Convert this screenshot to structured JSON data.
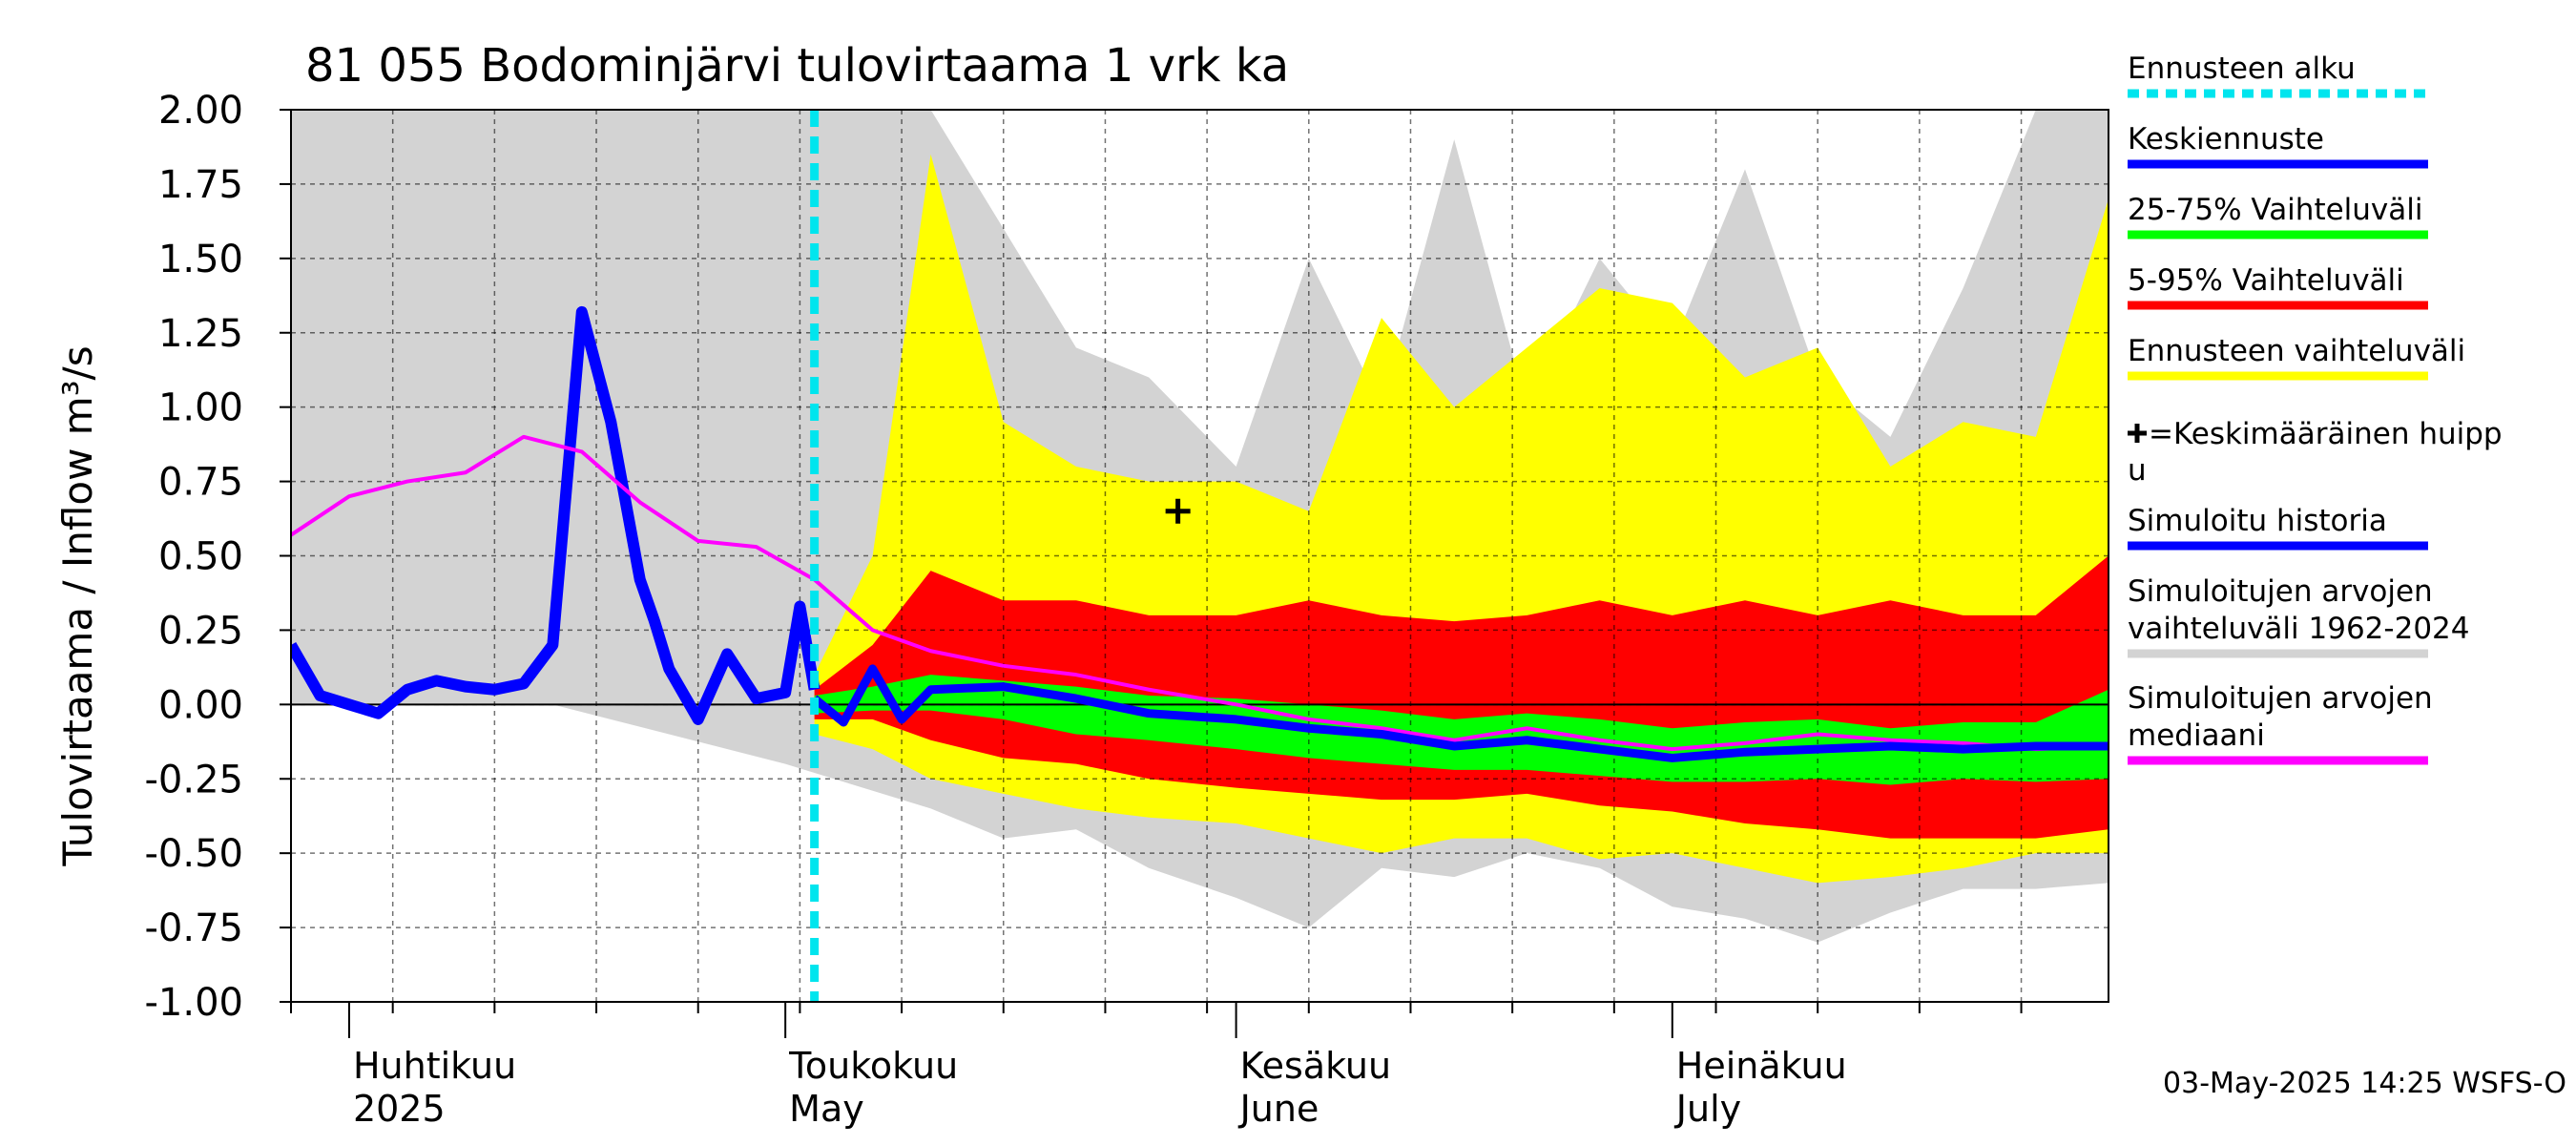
{
  "colors": {
    "forecast_start": "#00e5ee",
    "mean_forecast": "#0000ff",
    "range_25_75": "#00ff00",
    "range_5_95": "#ff0000",
    "forecast_range": "#ffff00",
    "sim_range": "#d3d3d3",
    "sim_history": "#0000ff",
    "sim_median": "#ff00ff"
  },
  "chart_data": {
    "type": "area",
    "title": "81 055 Bodominjärvi tulovirtaama 1 vrk ka",
    "ylabel": "Tulovirtaama / Inflow    m³/s",
    "ylim": [
      -1.0,
      2.0
    ],
    "yticks": [
      "-1.00",
      "-0.75",
      "-0.50",
      "-0.25",
      "0.00",
      "0.25",
      "0.50",
      "0.75",
      "1.00",
      "1.25",
      "1.50",
      "1.75",
      "2.00"
    ],
    "x_range": [
      "2025-03-28",
      "2025-07-31"
    ],
    "forecast_start": "2025-05-03",
    "months": [
      {
        "fi": "Huhtikuu",
        "en": "2025",
        "date": "2025-04-01"
      },
      {
        "fi": "Toukokuu",
        "en": "May",
        "date": "2025-05-01"
      },
      {
        "fi": "Kesäkuu",
        "en": "June",
        "date": "2025-06-01"
      },
      {
        "fi": "Heinäkuu",
        "en": "July",
        "date": "2025-07-01"
      }
    ],
    "mean_peak_marker": {
      "date": "2025-05-28",
      "value": 0.65
    },
    "series": [
      {
        "name": "Simuloitu historia",
        "x": [
          "2025-03-28",
          "2025-03-30",
          "2025-04-01",
          "2025-04-03",
          "2025-04-05",
          "2025-04-07",
          "2025-04-09",
          "2025-04-11",
          "2025-04-13",
          "2025-04-15",
          "2025-04-17",
          "2025-04-19",
          "2025-04-21",
          "2025-04-22",
          "2025-04-23",
          "2025-04-25",
          "2025-04-27",
          "2025-04-29",
          "2025-05-01",
          "2025-05-02",
          "2025-05-03"
        ],
        "values": [
          0.2,
          0.03,
          0.0,
          -0.03,
          0.05,
          0.08,
          0.06,
          0.05,
          0.07,
          0.2,
          1.32,
          0.95,
          0.42,
          0.28,
          0.12,
          -0.05,
          0.17,
          0.02,
          0.04,
          0.33,
          0.05
        ]
      },
      {
        "name": "Simuloitujen arvojen mediaani",
        "x": [
          "2025-03-28",
          "2025-04-01",
          "2025-04-05",
          "2025-04-09",
          "2025-04-13",
          "2025-04-17",
          "2025-04-21",
          "2025-04-25",
          "2025-04-29",
          "2025-05-03",
          "2025-05-07",
          "2025-05-11",
          "2025-05-16",
          "2025-05-21",
          "2025-05-26",
          "2025-06-01",
          "2025-06-06",
          "2025-06-11",
          "2025-06-16",
          "2025-06-21",
          "2025-06-26",
          "2025-07-01",
          "2025-07-06",
          "2025-07-11",
          "2025-07-16",
          "2025-07-21",
          "2025-07-26",
          "2025-07-31"
        ],
        "values": [
          0.57,
          0.7,
          0.75,
          0.78,
          0.9,
          0.85,
          0.68,
          0.55,
          0.53,
          0.42,
          0.25,
          0.18,
          0.13,
          0.1,
          0.05,
          0.0,
          -0.05,
          -0.08,
          -0.12,
          -0.08,
          -0.12,
          -0.15,
          -0.13,
          -0.1,
          -0.12,
          -0.13,
          -0.15,
          -0.14
        ]
      },
      {
        "name": "Keskiennuste",
        "x": [
          "2025-05-03",
          "2025-05-05",
          "2025-05-07",
          "2025-05-09",
          "2025-05-11",
          "2025-05-16",
          "2025-05-21",
          "2025-05-26",
          "2025-06-01",
          "2025-06-06",
          "2025-06-11",
          "2025-06-16",
          "2025-06-21",
          "2025-06-26",
          "2025-07-01",
          "2025-07-06",
          "2025-07-11",
          "2025-07-16",
          "2025-07-21",
          "2025-07-26",
          "2025-07-31"
        ],
        "values": [
          0.02,
          -0.06,
          0.12,
          -0.05,
          0.05,
          0.06,
          0.02,
          -0.03,
          -0.05,
          -0.08,
          -0.1,
          -0.14,
          -0.12,
          -0.15,
          -0.18,
          -0.16,
          -0.15,
          -0.14,
          -0.15,
          -0.14,
          -0.14
        ]
      }
    ],
    "bands": [
      {
        "name": "Simuloitujen arvojen vaihteluväli 1962-2024",
        "x": [
          "2025-03-28",
          "2025-04-15",
          "2025-05-01",
          "2025-05-11",
          "2025-05-16",
          "2025-05-21",
          "2025-05-26",
          "2025-06-01",
          "2025-06-06",
          "2025-06-11",
          "2025-06-16",
          "2025-06-21",
          "2025-06-26",
          "2025-07-01",
          "2025-07-06",
          "2025-07-11",
          "2025-07-16",
          "2025-07-21",
          "2025-07-26",
          "2025-07-31"
        ],
        "upper": [
          2.0,
          2.0,
          2.0,
          2.0,
          1.6,
          1.2,
          1.1,
          0.8,
          1.5,
          1.0,
          1.9,
          1.0,
          1.5,
          1.2,
          1.8,
          1.1,
          0.9,
          1.4,
          2.0,
          2.0
        ],
        "lower": [
          0.0,
          0.0,
          -0.2,
          -0.35,
          -0.45,
          -0.42,
          -0.55,
          -0.65,
          -0.75,
          -0.55,
          -0.58,
          -0.5,
          -0.55,
          -0.68,
          -0.72,
          -0.8,
          -0.7,
          -0.62,
          -0.62,
          -0.6
        ]
      },
      {
        "name": "Ennusteen vaihteluväli",
        "x": [
          "2025-05-03",
          "2025-05-07",
          "2025-05-11",
          "2025-05-16",
          "2025-05-21",
          "2025-05-26",
          "2025-06-01",
          "2025-06-06",
          "2025-06-11",
          "2025-06-16",
          "2025-06-21",
          "2025-06-26",
          "2025-07-01",
          "2025-07-06",
          "2025-07-11",
          "2025-07-16",
          "2025-07-21",
          "2025-07-26",
          "2025-07-31"
        ],
        "upper": [
          0.1,
          0.5,
          1.85,
          0.95,
          0.8,
          0.75,
          0.75,
          0.65,
          1.3,
          1.0,
          1.2,
          1.4,
          1.35,
          1.1,
          1.2,
          0.8,
          0.95,
          0.9,
          1.7
        ],
        "lower": [
          -0.1,
          -0.15,
          -0.25,
          -0.3,
          -0.35,
          -0.38,
          -0.4,
          -0.45,
          -0.5,
          -0.45,
          -0.45,
          -0.52,
          -0.5,
          -0.55,
          -0.6,
          -0.58,
          -0.55,
          -0.5,
          -0.5
        ]
      },
      {
        "name": "5-95% Vaihteluväli",
        "x": [
          "2025-05-03",
          "2025-05-07",
          "2025-05-11",
          "2025-05-16",
          "2025-05-21",
          "2025-05-26",
          "2025-06-01",
          "2025-06-06",
          "2025-06-11",
          "2025-06-16",
          "2025-06-21",
          "2025-06-26",
          "2025-07-01",
          "2025-07-06",
          "2025-07-11",
          "2025-07-16",
          "2025-07-21",
          "2025-07-26",
          "2025-07-31"
        ],
        "upper": [
          0.05,
          0.2,
          0.45,
          0.35,
          0.35,
          0.3,
          0.3,
          0.35,
          0.3,
          0.28,
          0.3,
          0.35,
          0.3,
          0.35,
          0.3,
          0.35,
          0.3,
          0.3,
          0.5
        ],
        "lower": [
          -0.05,
          -0.05,
          -0.12,
          -0.18,
          -0.2,
          -0.25,
          -0.28,
          -0.3,
          -0.32,
          -0.32,
          -0.3,
          -0.34,
          -0.36,
          -0.4,
          -0.42,
          -0.45,
          -0.45,
          -0.45,
          -0.42
        ]
      },
      {
        "name": "25-75% Vaihteluväli",
        "x": [
          "2025-05-03",
          "2025-05-07",
          "2025-05-11",
          "2025-05-16",
          "2025-05-21",
          "2025-05-26",
          "2025-06-01",
          "2025-06-06",
          "2025-06-11",
          "2025-06-16",
          "2025-06-21",
          "2025-06-26",
          "2025-07-01",
          "2025-07-06",
          "2025-07-11",
          "2025-07-16",
          "2025-07-21",
          "2025-07-26",
          "2025-07-31"
        ],
        "upper": [
          0.03,
          0.06,
          0.1,
          0.08,
          0.06,
          0.03,
          0.02,
          0.0,
          -0.02,
          -0.05,
          -0.03,
          -0.05,
          -0.08,
          -0.06,
          -0.05,
          -0.08,
          -0.06,
          -0.06,
          0.05
        ],
        "lower": [
          -0.03,
          -0.02,
          -0.02,
          -0.05,
          -0.1,
          -0.12,
          -0.15,
          -0.18,
          -0.2,
          -0.22,
          -0.22,
          -0.24,
          -0.26,
          -0.26,
          -0.25,
          -0.27,
          -0.25,
          -0.26,
          -0.25
        ]
      }
    ],
    "legend": [
      {
        "label": "Ennusteen alku",
        "kind": "dashed",
        "color_key": "forecast_start"
      },
      {
        "label": "Keskiennuste",
        "kind": "line",
        "color_key": "mean_forecast"
      },
      {
        "label": "25-75% Vaihteluväli",
        "kind": "line",
        "color_key": "range_25_75"
      },
      {
        "label": "5-95% Vaihteluväli",
        "kind": "line",
        "color_key": "range_5_95"
      },
      {
        "label": "Ennusteen vaihteluväli",
        "kind": "line",
        "color_key": "forecast_range"
      },
      {
        "label": "=Keskimääräinen huipp",
        "label2": "u",
        "kind": "cross"
      },
      {
        "label": "Simuloitu historia",
        "kind": "line",
        "color_key": "sim_history"
      },
      {
        "label": "Simuloitujen arvojen",
        "label2": "vaihteluväli 1962-2024",
        "kind": "line",
        "color_key": "sim_range"
      },
      {
        "label": "Simuloitujen arvojen",
        "label2": "mediaani",
        "kind": "line",
        "color_key": "sim_median"
      }
    ],
    "legend_placement": "right",
    "grid": true
  },
  "footer": "03-May-2025 14:25 WSFS-O"
}
